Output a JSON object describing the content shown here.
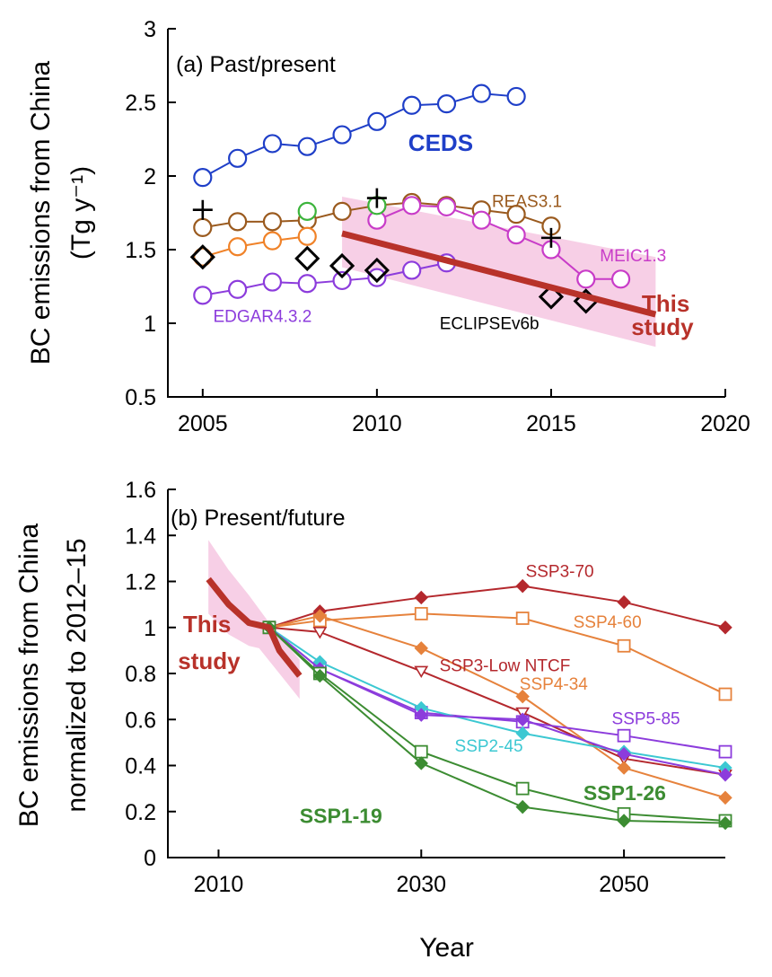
{
  "chart_data": [
    {
      "panel": "a",
      "type": "line",
      "title": "(a) Past/present",
      "ylabel_line1": "BC emissions from China",
      "ylabel_line2": "(Tg y⁻¹)",
      "xlim": [
        2004,
        2020
      ],
      "ylim": [
        0.5,
        3
      ],
      "xticks": [
        2005,
        2010,
        2015,
        2020
      ],
      "yticks": [
        0.5,
        1,
        1.5,
        2,
        2.5,
        3
      ],
      "ytick_labels": [
        "0.5",
        "1",
        "1.5",
        "2",
        "2.5",
        "3"
      ],
      "grid": false,
      "series": [
        {
          "name": "CEDS",
          "color": "#1f3fc8",
          "marker": "circle",
          "x": [
            2005,
            2006,
            2007,
            2008,
            2009,
            2010,
            2011,
            2012,
            2013,
            2014
          ],
          "y": [
            1.99,
            2.12,
            2.22,
            2.2,
            2.28,
            2.37,
            2.48,
            2.49,
            2.56,
            2.54
          ]
        },
        {
          "name": "REAS3.1",
          "color": "#9a5a1e",
          "marker": "circle",
          "x": [
            2005,
            2006,
            2007,
            2008,
            2009,
            2010,
            2011,
            2012,
            2013,
            2014,
            2015
          ],
          "y": [
            1.65,
            1.69,
            1.69,
            1.7,
            1.76,
            1.8,
            1.82,
            1.8,
            1.77,
            1.74,
            1.66
          ]
        },
        {
          "name": "MEIC1.3",
          "color": "#c83cc8",
          "marker": "circle",
          "x": [
            2010,
            2011,
            2012,
            2013,
            2014,
            2015,
            2016,
            2017
          ],
          "y": [
            1.7,
            1.8,
            1.79,
            1.7,
            1.6,
            1.5,
            1.3,
            1.3
          ]
        },
        {
          "name": "EDGAR4.3.2",
          "color": "#8c3cdc",
          "marker": "circle",
          "x": [
            2005,
            2006,
            2007,
            2008,
            2009,
            2010,
            2011,
            2012
          ],
          "y": [
            1.19,
            1.23,
            1.28,
            1.27,
            1.29,
            1.31,
            1.36,
            1.41
          ]
        },
        {
          "name": "",
          "color": "#f08228",
          "marker": "circle",
          "x": [
            2005,
            2006,
            2007,
            2008
          ],
          "y": [
            1.45,
            1.52,
            1.56,
            1.59
          ]
        },
        {
          "name": "",
          "color": "#3cb43c",
          "marker": "circle",
          "noline": true,
          "x": [
            2008,
            2010
          ],
          "y": [
            1.76,
            1.8
          ]
        },
        {
          "name": "ECLIPSEv6b",
          "color": "#000000",
          "marker": "diamond",
          "noline": true,
          "x": [
            2005,
            2008,
            2009,
            2010,
            2015,
            2016
          ],
          "y": [
            1.45,
            1.44,
            1.39,
            1.36,
            1.18,
            1.15
          ]
        },
        {
          "name": "",
          "color": "#000000",
          "marker": "plus",
          "noline": true,
          "x": [
            2005,
            2010,
            2015
          ],
          "y": [
            1.77,
            1.85,
            1.58
          ]
        },
        {
          "name": "This study",
          "color": "#b8322a",
          "marker": "none",
          "thick": true,
          "x": [
            2009,
            2018
          ],
          "y": [
            1.61,
            1.06
          ],
          "band_x": [
            2009,
            2018
          ],
          "band_upper": [
            1.86,
            1.45
          ],
          "band_lower": [
            1.38,
            0.84
          ]
        }
      ],
      "labels": [
        {
          "text": "CEDS",
          "color": "#1f3fc8",
          "x": 2010.9,
          "y": 2.17,
          "style": "big"
        },
        {
          "text": "REAS3.1",
          "color": "#9a5a1e",
          "x": 2013.3,
          "y": 1.79,
          "style": "small"
        },
        {
          "text": "MEIC1.3",
          "color": "#c83cc8",
          "x": 2016.4,
          "y": 1.42,
          "style": "small"
        },
        {
          "text": "EDGAR4.3.2",
          "color": "#8c3cdc",
          "x": 2005.3,
          "y": 1.01,
          "style": "small"
        },
        {
          "text": "ECLIPSEv6b",
          "color": "#000000",
          "x": 2011.8,
          "y": 0.96,
          "style": "small"
        },
        {
          "text": "This",
          "color": "#b8322a",
          "x": 2017.6,
          "y": 1.08,
          "style": "big"
        },
        {
          "text": "study",
          "color": "#b8322a",
          "x": 2017.3,
          "y": 0.92,
          "style": "big"
        }
      ]
    },
    {
      "panel": "b",
      "type": "line",
      "title": "(b) Present/future",
      "ylabel_line1": "BC emissions from China",
      "ylabel_line2": "normalized to 2012–15",
      "xlabel": "Year",
      "xlim": [
        2005,
        2060
      ],
      "ylim": [
        0,
        1.6
      ],
      "xticks": [
        2010,
        2030,
        2050
      ],
      "yticks": [
        0,
        0.2,
        0.4,
        0.6,
        0.8,
        1,
        1.2,
        1.4,
        1.6
      ],
      "ytick_labels": [
        "0",
        "0.2",
        "0.4",
        "0.6",
        "0.8",
        "1",
        "1.2",
        "1.4",
        "1.6"
      ],
      "grid": false,
      "series": [
        {
          "name": "SSP3-70",
          "color": "#b4282d",
          "marker": "diamond-filled",
          "x": [
            2015,
            2020,
            2030,
            2040,
            2050,
            2060
          ],
          "y": [
            1.0,
            1.07,
            1.13,
            1.18,
            1.11,
            1.0
          ]
        },
        {
          "name": "SSP4-60",
          "color": "#e6823c",
          "marker": "square-open",
          "x": [
            2015,
            2020,
            2030,
            2040,
            2050,
            2060
          ],
          "y": [
            1.0,
            1.03,
            1.06,
            1.04,
            0.92,
            0.71
          ]
        },
        {
          "name": "SSP3-Low NTCF",
          "color": "#b4282d",
          "marker": "triangle-open",
          "x": [
            2015,
            2020,
            2030,
            2040,
            2050,
            2060
          ],
          "y": [
            1.0,
            0.98,
            0.81,
            0.63,
            0.43,
            0.36
          ]
        },
        {
          "name": "SSP4-34",
          "color": "#e6823c",
          "marker": "diamond-filled",
          "x": [
            2015,
            2020,
            2030,
            2040,
            2050,
            2060
          ],
          "y": [
            1.0,
            1.05,
            0.91,
            0.7,
            0.39,
            0.26
          ]
        },
        {
          "name": "SSP5-85",
          "color": "#8c3cdc",
          "marker": "square-open",
          "x": [
            2015,
            2020,
            2030,
            2040,
            2050,
            2060
          ],
          "y": [
            1.0,
            0.82,
            0.63,
            0.59,
            0.53,
            0.46
          ]
        },
        {
          "name": "SSP2-45",
          "color": "#3cc8d2",
          "marker": "diamond-filled",
          "x": [
            2015,
            2020,
            2030,
            2040,
            2050,
            2060
          ],
          "y": [
            1.0,
            0.85,
            0.65,
            0.54,
            0.46,
            0.39
          ]
        },
        {
          "name": "",
          "color": "#8c3cdc",
          "marker": "diamond-filled",
          "x": [
            2015,
            2020,
            2030,
            2040,
            2050,
            2060
          ],
          "y": [
            1.0,
            0.82,
            0.62,
            0.6,
            0.45,
            0.36
          ]
        },
        {
          "name": "SSP1-26",
          "color": "#3c8c32",
          "marker": "square-open",
          "x": [
            2015,
            2020,
            2030,
            2040,
            2050,
            2060
          ],
          "y": [
            1.0,
            0.8,
            0.46,
            0.3,
            0.19,
            0.16
          ]
        },
        {
          "name": "SSP1-19",
          "color": "#3c8c32",
          "marker": "diamond-filled",
          "x": [
            2015,
            2020,
            2030,
            2040,
            2050,
            2060
          ],
          "y": [
            1.0,
            0.79,
            0.41,
            0.22,
            0.16,
            0.15
          ]
        },
        {
          "name": "This study",
          "color": "#b8322a",
          "marker": "none",
          "thick": true,
          "x": [
            2009,
            2011,
            2013,
            2014,
            2015,
            2016,
            2018
          ],
          "y": [
            1.21,
            1.1,
            1.02,
            1.01,
            1.0,
            0.9,
            0.79
          ],
          "band_x": [
            2009,
            2011,
            2013,
            2014,
            2016,
            2018
          ],
          "band_upper": [
            1.38,
            1.25,
            1.14,
            1.08,
            0.96,
            0.86
          ],
          "band_lower": [
            1.06,
            0.97,
            0.92,
            0.91,
            0.8,
            0.69
          ]
        }
      ],
      "labels": [
        {
          "text": "SSP3-70",
          "color": "#b4282d",
          "x": 2040.3,
          "y": 1.22,
          "style": "small"
        },
        {
          "text": "SSP4-60",
          "color": "#e6823c",
          "x": 2045.0,
          "y": 1.0,
          "style": "small"
        },
        {
          "text": "SSP3-Low NTCF",
          "color": "#b4282d",
          "x": 2031.8,
          "y": 0.81,
          "style": "small"
        },
        {
          "text": "SSP4-34",
          "color": "#e6823c",
          "x": 2039.7,
          "y": 0.73,
          "style": "small"
        },
        {
          "text": "SSP5-85",
          "color": "#8c3cdc",
          "x": 2048.8,
          "y": 0.58,
          "style": "small"
        },
        {
          "text": "SSP2-45",
          "color": "#3cc8d2",
          "x": 2033.3,
          "y": 0.46,
          "style": "small"
        },
        {
          "text": "SSP1-26",
          "color": "#3c8c32",
          "x": 2046.0,
          "y": 0.25,
          "style": "big"
        },
        {
          "text": "SSP1-19",
          "color": "#3c8c32",
          "x": 2018.0,
          "y": 0.15,
          "style": "big"
        },
        {
          "text": "This",
          "color": "#b8322a",
          "x": 2006.5,
          "y": 0.98,
          "style": "big"
        },
        {
          "text": "study",
          "color": "#b8322a",
          "x": 2006.0,
          "y": 0.82,
          "style": "big"
        }
      ]
    }
  ]
}
